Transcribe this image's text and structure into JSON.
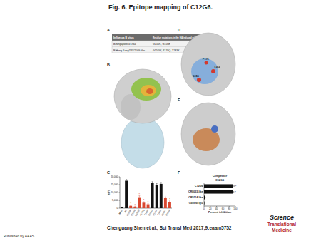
{
  "header": {
    "title": "Fig. 6. Epitope mapping of C12G6."
  },
  "panels": [
    {
      "label": "A",
      "table": {
        "columns": [
          "Influenza B virus",
          "Residue mutations in the HA induced with C12G6"
        ],
        "rows": [
          [
            "B/Singapore/3/1964",
            "G156R, G156E"
          ],
          [
            "B/Hong Kong/537/2009-like",
            "G156W, P176Q, T183K"
          ]
        ]
      }
    },
    {
      "label": "B"
    },
    {
      "label": "C"
    },
    {
      "label": "D",
      "residue_labels": [
        "G156",
        "T183",
        "P176"
      ]
    },
    {
      "label": "E"
    },
    {
      "label": "F"
    }
  ],
  "chart_data": [
    {
      "type": "bar",
      "y_label": "MFI",
      "categories": [
        "Mock",
        "WT",
        "G156R",
        "G156E",
        "G156W",
        "P176Q",
        "T183K",
        "G156A",
        "P176A",
        "T183A",
        "D196A",
        "G156K"
      ],
      "values": [
        500,
        17500,
        1500,
        1000,
        7000,
        3500,
        2500,
        16000,
        15000,
        15500,
        6500,
        4000
      ],
      "errors": [
        200,
        800,
        400,
        300,
        900,
        600,
        500,
        900,
        800,
        900,
        700,
        600
      ],
      "colors": [
        "#111111",
        "#111111",
        "#d9472f",
        "#d9472f",
        "#d9472f",
        "#d9472f",
        "#d9472f",
        "#111111",
        "#111111",
        "#111111",
        "#d9472f",
        "#d9472f"
      ],
      "significance": [
        null,
        null,
        "*",
        "*",
        "*",
        "*",
        "*",
        null,
        null,
        null,
        "*",
        "*"
      ],
      "ylim": [
        0,
        20000
      ],
      "yticks": [
        0,
        {
          "value": 5000,
          "label": "5,000"
        },
        {
          "value": 10000,
          "label": "10,000"
        },
        {
          "value": 15000,
          "label": "15,000"
        },
        {
          "value": 20000,
          "label": "20,000"
        }
      ],
      "grid": false
    },
    {
      "type": "bar",
      "orientation": "horizontal",
      "title": "Competitor",
      "subtitle": "C12G6",
      "x_label": "Percent inhibition",
      "categories": [
        "C12G6",
        "CR8033-like",
        "CR9114-like",
        "Control IgG"
      ],
      "values": [
        93,
        92,
        3,
        1
      ],
      "errors": [
        3,
        3,
        1,
        1
      ],
      "color": "#111111",
      "significance": [
        "*",
        "*",
        null,
        null
      ],
      "xlim": [
        0,
        100
      ],
      "xticks": [
        0,
        20,
        40,
        60,
        80,
        100
      ],
      "grid": false
    }
  ],
  "footer": {
    "citation": "Chenguang Shen et al., Sci Transl Med 2017;9:eaam5752",
    "journal": [
      "Science",
      "Translational",
      "Medicine"
    ],
    "publisher": "Published by AAAS"
  }
}
